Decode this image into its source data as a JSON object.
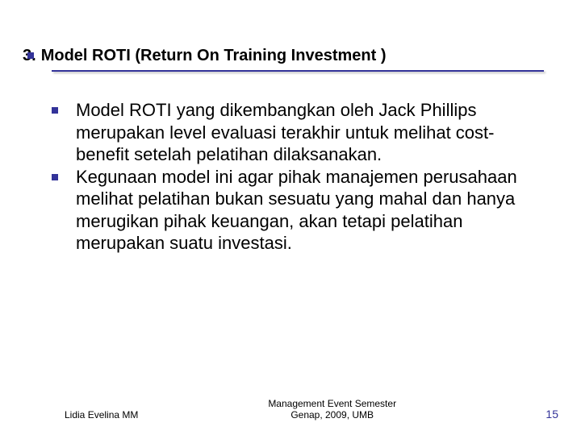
{
  "slide": {
    "title_number": "3.",
    "title_text": "Model ROTI (Return On Training Investment )",
    "title_fontsize": 20,
    "title_color": "#000000",
    "underline_color": "#333399",
    "bullets": [
      "Model ROTI yang dikembangkan oleh Jack Phillips merupakan level evaluasi terakhir untuk melihat cost-benefit setelah pelatihan dilaksanakan.",
      "Kegunaan model ini agar pihak manajemen perusahaan melihat pelatihan bukan sesuatu yang mahal dan hanya merugikan pihak keuangan, akan tetapi pelatihan merupakan suatu investasi."
    ],
    "bullet_color": "#333399",
    "body_fontsize": 22,
    "body_color": "#000000",
    "background_color": "#ffffff"
  },
  "footer": {
    "left": "Lidia Evelina MM",
    "center_line1": "Management Event Semester",
    "center_line2": "Genap, 2009, UMB",
    "page_number": "15",
    "page_number_color": "#333399"
  }
}
